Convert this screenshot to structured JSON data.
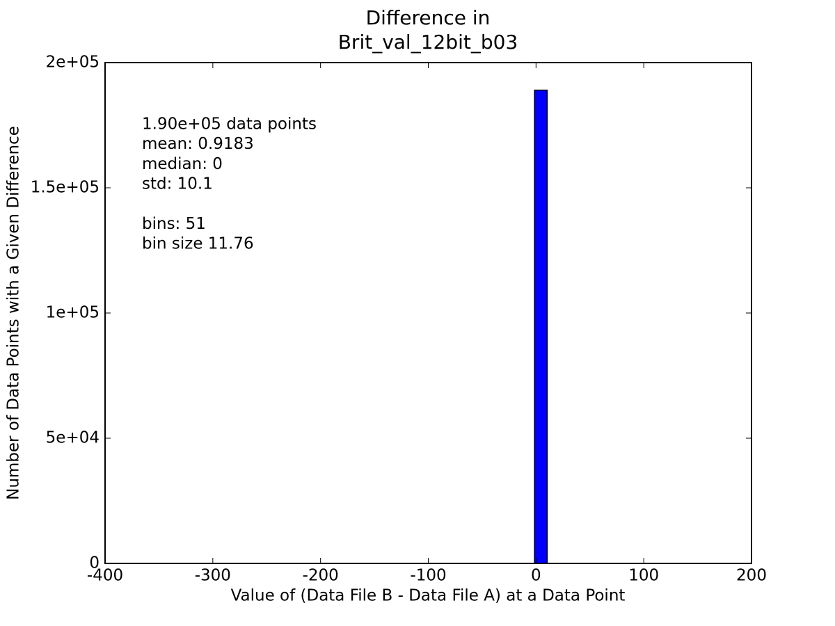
{
  "chart_data": {
    "type": "histogram",
    "title": [
      "Difference in",
      "Brit_val_12bit_b03"
    ],
    "xlabel": "Value of (Data File B - Data File A) at a Data Point",
    "ylabel": "Number of Data Points with a Given Difference",
    "annotations": [
      [
        "1.90e+05 data points",
        "mean: 0.9183",
        "median: 0",
        "std: 10.1"
      ],
      [
        "bins: 51",
        "bin size 11.76"
      ]
    ],
    "bins": [
      -377.72,
      -365.96,
      -354.2,
      -342.44,
      -330.68,
      -318.92,
      -307.16,
      -295.4,
      -283.64,
      -271.88,
      -260.12,
      -248.36,
      -236.6,
      -224.84,
      -213.08,
      -201.32,
      -189.56,
      -177.8,
      -166.04,
      -154.28,
      -142.52,
      -130.76,
      -119.0,
      -107.24,
      -95.48,
      -83.72,
      -71.96,
      -60.2,
      -48.44,
      -36.68,
      -24.92,
      -13.16,
      -1.4,
      10.36,
      22.12,
      33.88,
      45.64,
      57.4,
      69.16,
      80.92,
      92.68,
      104.44,
      116.2,
      127.96,
      139.72,
      151.48,
      163.24,
      175.0,
      186.76,
      198.52,
      210.28,
      222.04
    ],
    "values": [
      0,
      0,
      0,
      0,
      0,
      0,
      0,
      0,
      0,
      0,
      0,
      0,
      0,
      0,
      0,
      0,
      0,
      0,
      0,
      0,
      0,
      0,
      0,
      0,
      0,
      0,
      0,
      0,
      0,
      0,
      0,
      0,
      189000,
      0,
      0,
      0,
      0,
      0,
      0,
      0,
      0,
      0,
      0,
      0,
      0,
      0,
      0,
      0,
      0,
      0,
      0
    ],
    "color": "#0000ff",
    "xlim": [
      -400,
      200
    ],
    "xticks": [
      -400,
      -300,
      -200,
      -100,
      0,
      100,
      200
    ],
    "ylim": [
      0,
      200000
    ],
    "yticks": [
      0,
      {
        "value": 50000,
        "label": "5e+04"
      },
      {
        "value": 100000,
        "label": "1e+05"
      },
      {
        "value": 150000,
        "label": "1.5e+05"
      },
      {
        "value": 200000,
        "label": "2e+05"
      }
    ],
    "grid": false
  }
}
